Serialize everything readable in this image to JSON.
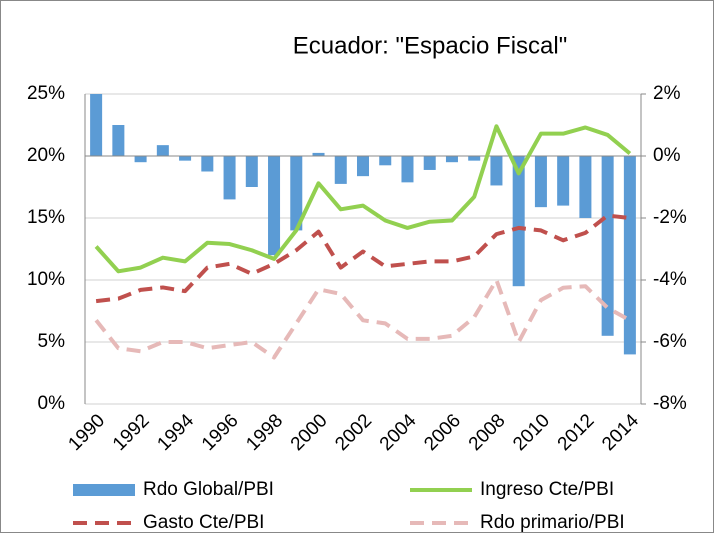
{
  "chart_data": {
    "type": "combo",
    "title": "Ecuador: \"Espacio Fiscal\"",
    "categories": [
      "1990",
      null,
      "1992",
      null,
      "1994",
      null,
      "1996",
      null,
      "1998",
      null,
      "2000",
      null,
      "2002",
      null,
      "2004",
      null,
      "2006",
      null,
      "2008",
      null,
      "2010",
      null,
      "2012",
      null,
      "2014"
    ],
    "ylim": [
      0,
      25
    ],
    "yticks": [
      {
        "value": 0,
        "label": "0%"
      },
      {
        "value": 5,
        "label": "5%"
      },
      {
        "value": 10,
        "label": "10%"
      },
      {
        "value": 15,
        "label": "15%"
      },
      {
        "value": 20,
        "label": "20%"
      },
      {
        "value": 25,
        "label": "25%"
      }
    ],
    "y2lim": [
      -8,
      2
    ],
    "y2ticks": [
      {
        "value": -8,
        "label": "-8%"
      },
      {
        "value": -6,
        "label": "-6%"
      },
      {
        "value": -4,
        "label": "-4%"
      },
      {
        "value": -2,
        "label": "-2%"
      },
      {
        "value": 0,
        "label": "0%"
      },
      {
        "value": 2,
        "label": "2%"
      }
    ],
    "grid": true,
    "legend": "bottom",
    "series": [
      {
        "name": "Rdo Global/PBI",
        "color": "#5b9bd5",
        "style": "bar",
        "axis": "y2",
        "values": [
          2.0,
          1.0,
          -0.2,
          0.35,
          -0.15,
          -0.5,
          -1.4,
          -1.0,
          -3.2,
          -2.4,
          0.1,
          -0.9,
          -0.65,
          -0.3,
          -0.85,
          -0.45,
          -0.2,
          -0.15,
          -0.95,
          -4.2,
          -1.65,
          -1.6,
          -2.0,
          -5.8,
          -6.4
        ]
      },
      {
        "name": "Ingreso Cte/PBI",
        "color": "#92d050",
        "style": "solid",
        "values": [
          12.7,
          10.7,
          11.0,
          11.8,
          11.5,
          13.0,
          12.9,
          12.4,
          11.7,
          14.0,
          17.8,
          15.7,
          16.0,
          14.8,
          14.2,
          14.7,
          14.8,
          16.7,
          22.4,
          18.6,
          21.8,
          21.8,
          22.3,
          21.7,
          20.2
        ]
      },
      {
        "name": "Gasto Cte/PBI",
        "color": "#c0504d",
        "style": "dashed",
        "values": [
          8.3,
          8.5,
          9.2,
          9.4,
          9.1,
          11.0,
          11.3,
          10.5,
          11.3,
          12.4,
          13.9,
          11.0,
          12.3,
          11.1,
          11.3,
          11.5,
          11.5,
          11.9,
          13.7,
          14.2,
          14.0,
          13.2,
          13.8,
          15.2,
          15.0
        ]
      },
      {
        "name": "Rdo primario/PBI",
        "color": "#e6b9b8",
        "style": "dashed",
        "axis": "y2",
        "values": [
          -5.3,
          -6.2,
          -6.3,
          -6.0,
          -6.0,
          -6.2,
          -6.1,
          -6.0,
          -6.5,
          -5.4,
          -4.3,
          -4.45,
          -5.3,
          -5.4,
          -5.9,
          -5.9,
          -5.8,
          -5.2,
          -4.0,
          -6.0,
          -4.65,
          -4.25,
          -4.2,
          -4.9,
          -5.3
        ]
      }
    ]
  }
}
